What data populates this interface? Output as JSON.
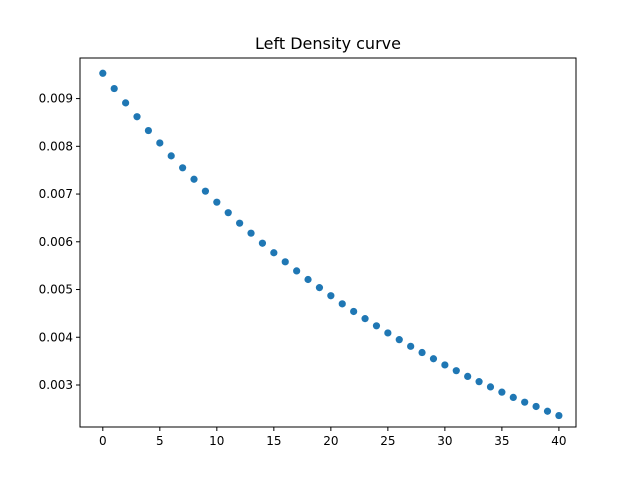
{
  "chart_data": {
    "type": "scatter",
    "title": "Left Density curve",
    "xlabel": "",
    "ylabel": "",
    "xlim": [
      -2,
      41.5
    ],
    "ylim": [
      0.00212,
      0.00985
    ],
    "x_ticks": [
      0,
      5,
      10,
      15,
      20,
      25,
      30,
      35,
      40
    ],
    "x_tick_labels": [
      "0",
      "5",
      "10",
      "15",
      "20",
      "25",
      "30",
      "35",
      "40"
    ],
    "y_ticks": [
      0.003,
      0.004,
      0.005,
      0.006,
      0.007,
      0.008,
      0.009
    ],
    "y_tick_labels": [
      "0.003",
      "0.004",
      "0.005",
      "0.006",
      "0.007",
      "0.008",
      "0.009"
    ],
    "grid": false,
    "marker_color": "#1f77b4",
    "series": [
      {
        "x": [
          0,
          1,
          2,
          3,
          4,
          5,
          6,
          7,
          8,
          9,
          10,
          11,
          12,
          13,
          14,
          15,
          16,
          17,
          18,
          19,
          20,
          21,
          22,
          23,
          24,
          25,
          26,
          27,
          28,
          29,
          30,
          31,
          32,
          33,
          34,
          35,
          36,
          37,
          38,
          39,
          40
        ],
        "values": [
          0.00953,
          0.00921,
          0.00891,
          0.00862,
          0.00833,
          0.00807,
          0.0078,
          0.00755,
          0.00731,
          0.00706,
          0.00683,
          0.00661,
          0.00639,
          0.00618,
          0.00597,
          0.00577,
          0.00558,
          0.00539,
          0.00521,
          0.00504,
          0.00487,
          0.0047,
          0.00454,
          0.00439,
          0.00424,
          0.00409,
          0.00395,
          0.00381,
          0.00368,
          0.00355,
          0.00342,
          0.0033,
          0.00318,
          0.00307,
          0.00296,
          0.00285,
          0.00274,
          0.00264,
          0.00255,
          0.00245,
          0.00236
        ]
      }
    ]
  }
}
